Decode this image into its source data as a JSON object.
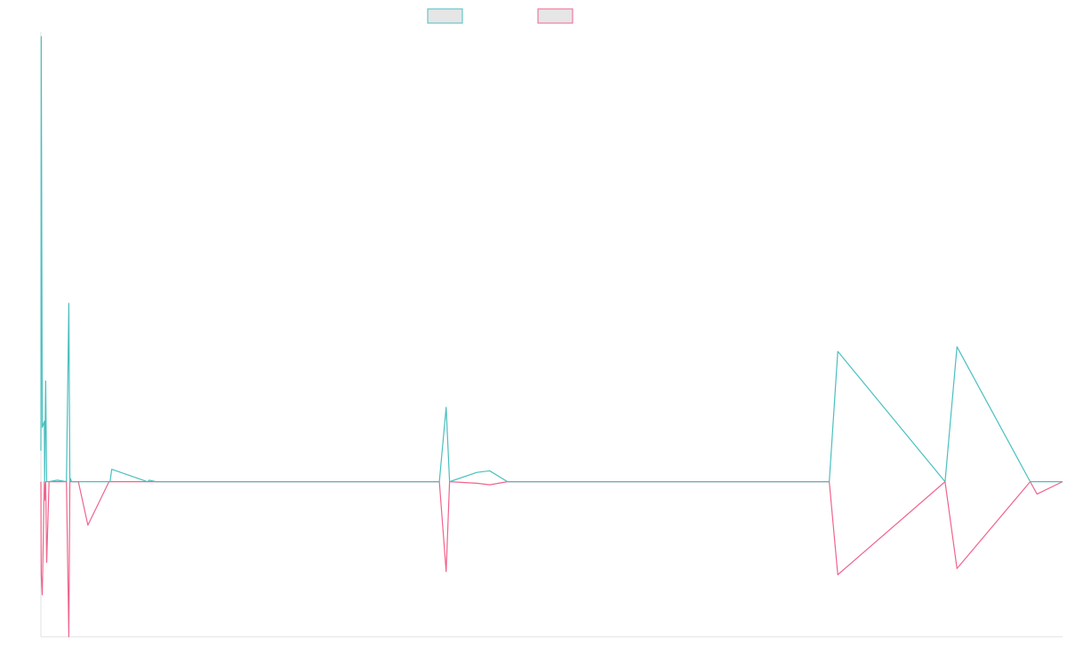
{
  "colors": {
    "series_1": "#4bbfbf",
    "series_2": "#f0648c",
    "legend_fill": "#e6e6e6",
    "axis": "#e0e0e0"
  },
  "legend": [
    {
      "series_index": 0
    },
    {
      "series_index": 1
    }
  ],
  "chart_data": {
    "type": "line",
    "title": "",
    "xlabel": "",
    "ylabel": "",
    "x": [
      0,
      1,
      4,
      10,
      11,
      14,
      17,
      24,
      48,
      75,
      82,
      85,
      87,
      90,
      110,
      138,
      200,
      203,
      208,
      313,
      318,
      338,
      346,
      1170,
      1190,
      1200,
      1280,
      1318,
      1370,
      1480,
      2315,
      2340,
      2655,
      2690,
      2905,
      2925,
      3000
    ],
    "ylim": [
      -100,
      290
    ],
    "series": [
      {
        "values": [
          20,
          287,
          35,
          39,
          0,
          65,
          0,
          0,
          1,
          0,
          115,
          0,
          2,
          0,
          0,
          0,
          0,
          0,
          8,
          0,
          1,
          0,
          0,
          0,
          48,
          0,
          6,
          7,
          0,
          0,
          0,
          84,
          0,
          87,
          0,
          0,
          0
        ]
      },
      {
        "values": [
          0,
          -60,
          -73,
          0,
          -12,
          0,
          -52,
          0,
          0,
          0,
          -100,
          0,
          0,
          0,
          0,
          -28,
          0,
          0,
          0,
          0,
          0,
          0,
          0,
          0,
          -58,
          0,
          -1,
          -2,
          0,
          0,
          0,
          -60,
          0,
          -56,
          0,
          -8,
          0
        ]
      }
    ]
  }
}
